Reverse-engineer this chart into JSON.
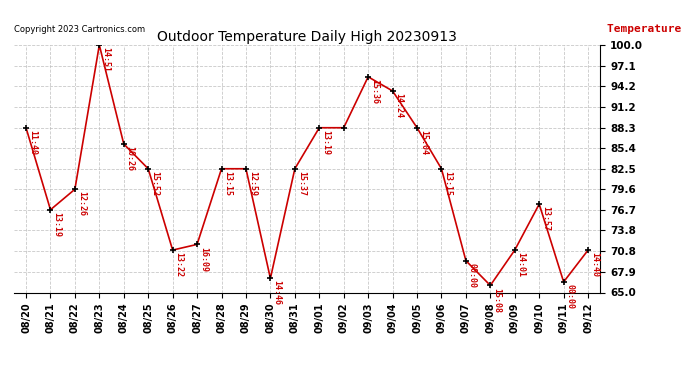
{
  "title": "Outdoor Temperature Daily High 20230913",
  "ylabel": "Temperature (°F)",
  "copyright": "Copyright 2023 Cartronics.com",
  "background_color": "#ffffff",
  "line_color": "#cc0000",
  "marker_color": "#000000",
  "text_color_red": "#cc0000",
  "text_color_black": "#000000",
  "ylim": [
    65.0,
    100.0
  ],
  "yticks": [
    65.0,
    67.9,
    70.8,
    73.8,
    76.7,
    79.6,
    82.5,
    85.4,
    88.3,
    91.2,
    94.2,
    97.1,
    100.0
  ],
  "dates": [
    "08/20",
    "08/21",
    "08/22",
    "08/23",
    "08/24",
    "08/25",
    "08/26",
    "08/27",
    "08/28",
    "08/29",
    "08/30",
    "08/31",
    "09/01",
    "09/02",
    "09/03",
    "09/04",
    "09/05",
    "09/06",
    "09/07",
    "09/08",
    "09/09",
    "09/10",
    "09/11",
    "09/12"
  ],
  "temps": [
    88.3,
    76.7,
    79.6,
    100.0,
    86.0,
    82.5,
    71.0,
    71.8,
    82.5,
    82.5,
    67.0,
    82.5,
    88.3,
    88.3,
    95.5,
    93.5,
    88.3,
    82.5,
    69.5,
    66.0,
    71.0,
    77.5,
    66.5,
    71.0
  ],
  "labels": [
    "11:40",
    "13:19",
    "12:26",
    "14:51",
    "10:26",
    "15:52",
    "13:22",
    "16:09",
    "13:15",
    "12:59",
    "14:46",
    "15:37",
    "13:19",
    "",
    "15:36",
    "14:24",
    "15:04",
    "13:15",
    "00:00",
    "15:08",
    "14:01",
    "13:57",
    "00:00",
    "14:40"
  ]
}
